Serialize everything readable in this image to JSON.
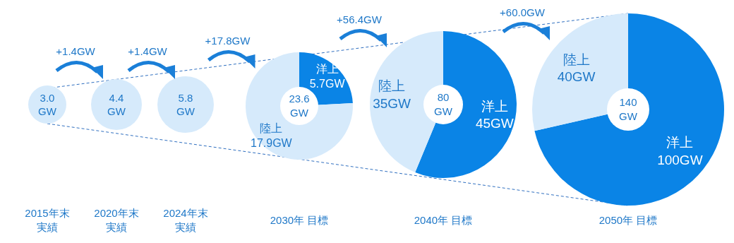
{
  "chart_data": [
    {
      "type": "pie",
      "title": "2015年末実績",
      "categories": [
        null
      ],
      "values": [
        3.0
      ],
      "colors": [
        "#d6eafb"
      ],
      "value_labels": [
        "3.0\nGW"
      ]
    },
    {
      "type": "pie",
      "title": "2020年末実績",
      "categories": [
        null
      ],
      "values": [
        4.4
      ],
      "colors": [
        "#d6eafb"
      ],
      "value_labels": [
        "4.4\nGW"
      ],
      "annotations": [
        "+1.4GW"
      ]
    },
    {
      "type": "pie",
      "title": "2024年末実績",
      "categories": [
        null
      ],
      "values": [
        5.8
      ],
      "colors": [
        "#d6eafb"
      ],
      "value_labels": [
        "5.8\nGW"
      ],
      "annotations": [
        "+1.4GW"
      ]
    },
    {
      "type": "donut",
      "title": "2030年 目標",
      "categories": [
        "洋上",
        "陸上"
      ],
      "values": [
        5.7,
        17.9
      ],
      "colors": [
        "#0a84e6",
        "#d6eafb"
      ],
      "value_labels": [
        "5.7GW",
        "17.9GW"
      ],
      "annotations": [
        "+17.8GW",
        "23.6\nGW"
      ]
    },
    {
      "type": "donut",
      "title": "2040年 目標",
      "categories": [
        "洋上",
        "陸上"
      ],
      "values": [
        45,
        35
      ],
      "colors": [
        "#0a84e6",
        "#d6eafb"
      ],
      "value_labels": [
        "45GW",
        "35GW"
      ],
      "annotations": [
        "+56.4GW",
        "80\nGW"
      ]
    },
    {
      "type": "donut",
      "title": "2050年 目標",
      "categories": [
        "洋上",
        "陸上"
      ],
      "values": [
        100,
        40
      ],
      "colors": [
        "#0a84e6",
        "#d6eafb"
      ],
      "value_labels": [
        "100GW",
        "40GW"
      ],
      "annotations": [
        "+60.0GW",
        "140\nGW"
      ]
    }
  ]
}
